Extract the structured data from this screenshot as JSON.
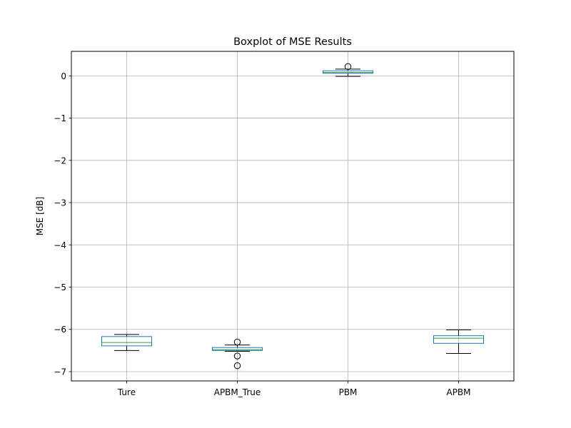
{
  "chart_data": {
    "type": "boxplot",
    "title": "Boxplot of MSE Results",
    "xlabel": "",
    "ylabel": "MSE [dB]",
    "ylim": [
      -7.22,
      0.58
    ],
    "yticks": [
      0,
      -1,
      -2,
      -3,
      -4,
      -5,
      -6,
      -7
    ],
    "ytick_labels": [
      "0",
      "−1",
      "−2",
      "−3",
      "−4",
      "−5",
      "−6",
      "−7"
    ],
    "grid": true,
    "categories": [
      "Ture",
      "APBM_True",
      "PBM",
      "APBM"
    ],
    "boxes": [
      {
        "category": "Ture",
        "whisker_low": -6.5,
        "q1": -6.39,
        "median": -6.31,
        "q3": -6.17,
        "whisker_high": -6.12,
        "outliers": []
      },
      {
        "category": "APBM_True",
        "whisker_low": -6.52,
        "q1": -6.5,
        "median": -6.48,
        "q3": -6.43,
        "whisker_high": -6.37,
        "outliers": [
          -6.3,
          -6.63,
          -6.86
        ]
      },
      {
        "category": "PBM",
        "whisker_low": -0.01,
        "q1": 0.06,
        "median": 0.08,
        "q3": 0.12,
        "whisker_high": 0.16,
        "outliers": [
          0.22
        ]
      },
      {
        "category": "APBM",
        "whisker_low": -6.57,
        "q1": -6.33,
        "median": -6.21,
        "q3": -6.15,
        "whisker_high": -6.01,
        "outliers": []
      }
    ],
    "colors": {
      "box": "#1f77b4",
      "median": "#2ca02c",
      "whisker": "#000000",
      "grid": "#b0b0b0"
    }
  }
}
